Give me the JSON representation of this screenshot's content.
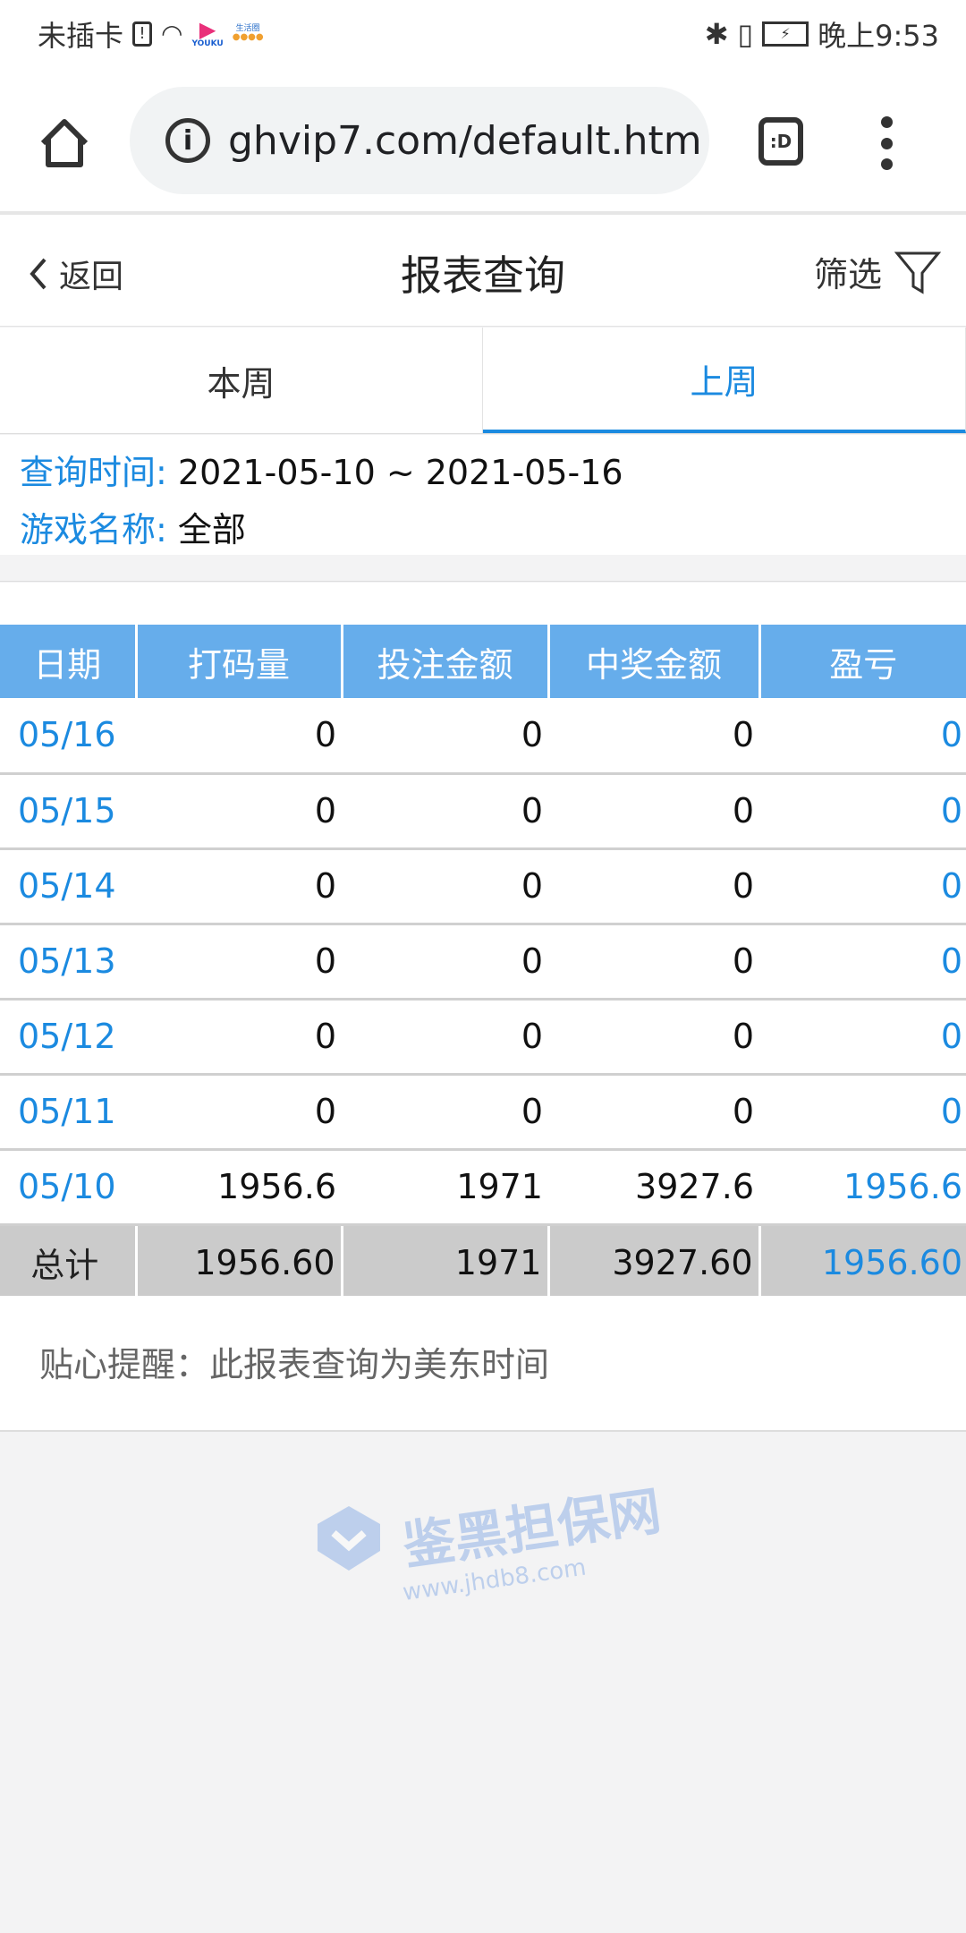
{
  "status_bar": {
    "carrier": "未插卡",
    "time": "晚上9:53",
    "app_labels": [
      "YOUKU",
      "生活圈"
    ]
  },
  "browser": {
    "url": "ghvip7.com/default.htm",
    "tab_switcher_label": ":D"
  },
  "header": {
    "back_label": "返回",
    "title": "报表查询",
    "filter_label": "筛选"
  },
  "tabs": [
    {
      "label": "本周",
      "active": false
    },
    {
      "label": "上周",
      "active": true
    }
  ],
  "query": {
    "time_label": "查询时间:",
    "time_value": "2021-05-10 ~ 2021-05-16",
    "game_label": "游戏名称:",
    "game_value": "全部"
  },
  "table": {
    "columns": [
      "日期",
      "打码量",
      "投注金额",
      "中奖金额",
      "盈亏"
    ],
    "rows": [
      [
        "05/16",
        "0",
        "0",
        "0",
        "0"
      ],
      [
        "05/15",
        "0",
        "0",
        "0",
        "0"
      ],
      [
        "05/14",
        "0",
        "0",
        "0",
        "0"
      ],
      [
        "05/13",
        "0",
        "0",
        "0",
        "0"
      ],
      [
        "05/12",
        "0",
        "0",
        "0",
        "0"
      ],
      [
        "05/11",
        "0",
        "0",
        "0",
        "0"
      ],
      [
        "05/10",
        "1956.6",
        "1971",
        "3927.6",
        "1956.6"
      ]
    ],
    "total": [
      "总计",
      "1956.60",
      "1971",
      "3927.60",
      "1956.60"
    ]
  },
  "note": "贴心提醒：此报表查询为美东时间",
  "watermark": {
    "name": "鉴黑担保网",
    "url": "www.jhdb8.com"
  },
  "colors": {
    "accent": "#1b8ae0",
    "table_header": "#66adeb",
    "total_row": "#cbcbcb"
  }
}
